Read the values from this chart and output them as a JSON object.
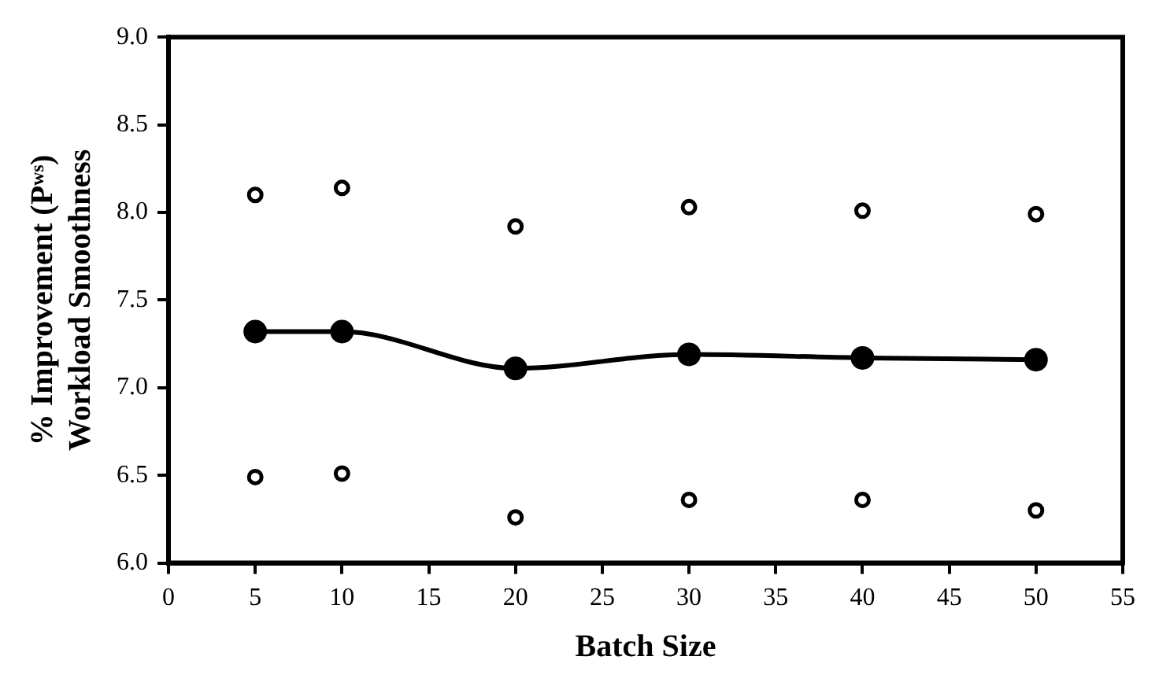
{
  "chart_data": {
    "type": "line",
    "xlabel": "Batch Size",
    "ylabel": "% Improvement (Pʷˢ)\nWorkload Smoothness",
    "x": [
      5,
      10,
      20,
      30,
      40,
      50
    ],
    "series": [
      {
        "type": "line",
        "color": "#000000",
        "marker": "circle",
        "values": [
          7.32,
          7.32,
          7.11,
          7.19,
          7.17,
          7.16
        ]
      },
      {
        "type": "scatter",
        "color": "#000000",
        "marker": "circle",
        "values": [
          8.1,
          8.14,
          7.92,
          8.03,
          8.01,
          7.99
        ]
      },
      {
        "type": "scatter",
        "color": "#000000",
        "marker": "circle",
        "values": [
          6.49,
          6.51,
          6.26,
          6.36,
          6.36,
          6.3
        ]
      }
    ],
    "xlim": [
      0,
      55
    ],
    "xticks": [
      0,
      5,
      10,
      15,
      20,
      25,
      30,
      35,
      40,
      45,
      50,
      55
    ],
    "ylim": [
      6,
      9
    ],
    "yticks": [
      {
        "value": 6,
        "label": "6.0"
      },
      {
        "value": 6.5,
        "label": "6.5"
      },
      {
        "value": 7,
        "label": "7.0"
      },
      {
        "value": 7.5,
        "label": "7.5"
      },
      {
        "value": 8,
        "label": "8.0"
      },
      {
        "value": 8.5,
        "label": "8.5"
      },
      {
        "value": 9,
        "label": "9.0"
      }
    ],
    "grid": false,
    "legend": false
  }
}
